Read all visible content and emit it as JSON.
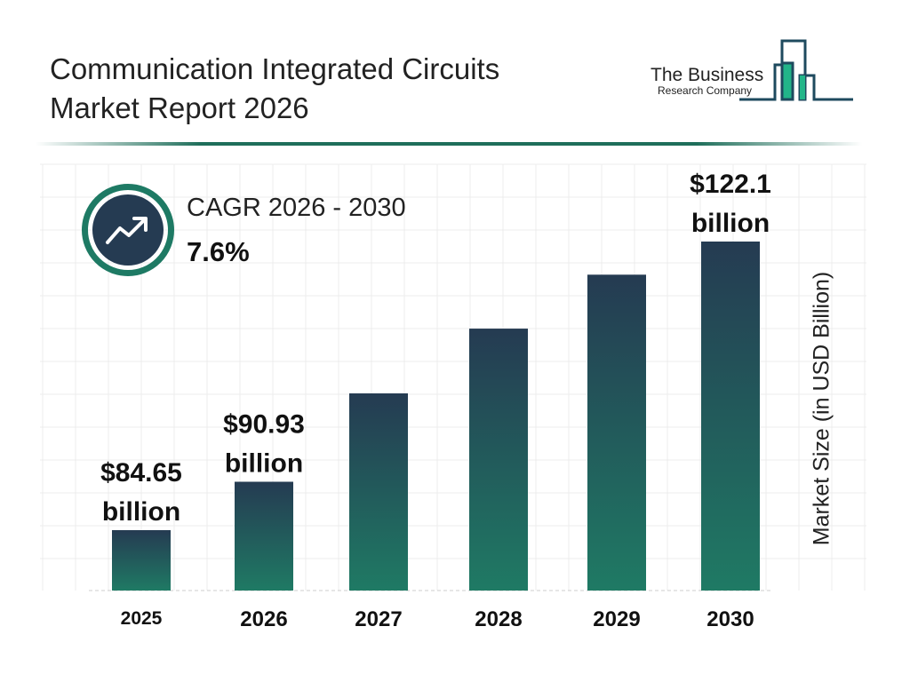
{
  "header": {
    "title_line1": "Communication Integrated Circuits",
    "title_line2": "Market Report 2026"
  },
  "logo": {
    "line1": "The Business",
    "line2": "Research Company"
  },
  "cagr": {
    "label": "CAGR 2026 - 2030",
    "value": "7.6%",
    "icon": "trend-up-icon"
  },
  "colors": {
    "bar_top": "#253b52",
    "bar_bottom": "#1f7a64",
    "accent": "#1e7a64"
  },
  "chart_data": {
    "type": "bar",
    "categories": [
      "2025",
      "2026",
      "2027",
      "2028",
      "2029",
      "2030"
    ],
    "values": [
      84.65,
      90.93,
      102.4,
      110.8,
      117.8,
      122.1
    ],
    "data_labels": [
      {
        "index": 0,
        "line1": "$84.65",
        "line2": "billion"
      },
      {
        "index": 1,
        "line1": "$90.93",
        "line2": "billion"
      },
      {
        "index": 5,
        "line1": "$122.1",
        "line2": "billion"
      }
    ],
    "ylabel": "Market Size (in USD Billion)",
    "grid": true
  }
}
